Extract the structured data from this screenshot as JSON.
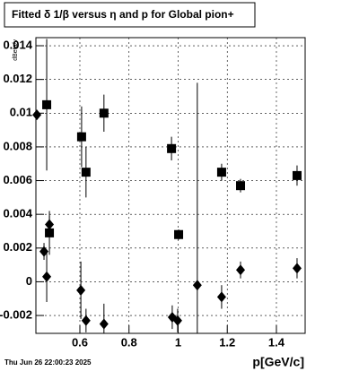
{
  "chart_data": {
    "type": "errorbar",
    "title": "Fitted δ 1/β versus η and p for Global pion+",
    "x_label": "p[GeV/c]",
    "y_label": "dBeta/v",
    "timestamp": "Thu Jun 26 22:00:23 2025",
    "xlim": [
      0.421,
      1.517
    ],
    "ylim": [
      -0.00306,
      0.01448
    ],
    "xticks": [
      0.6,
      0.8,
      1,
      1.2,
      1.4
    ],
    "yticks": [
      -0.002,
      0,
      0.002,
      0.004,
      0.006,
      0.008,
      0.01,
      0.012,
      0.014
    ],
    "grid": true,
    "series": [
      {
        "marker": "square",
        "color": "#000000",
        "x": [
          0.465,
          0.476,
          0.607,
          0.625,
          0.698,
          0.973,
          1.002,
          1.177,
          1.254,
          1.484
        ],
        "values": [
          0.0105,
          0.0029,
          0.0086,
          0.0065,
          0.01,
          0.0079,
          0.0028,
          0.0065,
          0.0057,
          0.0063
        ],
        "errors": [
          0.0039,
          0.0013,
          0.0018,
          0.0015,
          0.0011,
          0.0007,
          0.0003,
          0.0005,
          0.0004,
          0.0006
        ]
      },
      {
        "marker": "diamond",
        "color": "#000000",
        "x": [
          0.425,
          0.454,
          0.476,
          0.465,
          0.604,
          0.625,
          0.698,
          0.976,
          0.998,
          1.078,
          1.177,
          1.254,
          1.484
        ],
        "values": [
          0.0099,
          0.0018,
          0.0034,
          0.0003,
          -0.0005,
          -0.0023,
          -0.0025,
          -0.0021,
          -0.0023,
          -0.0002,
          -0.0009,
          0.0007,
          0.0008
        ],
        "errors": [
          0.0001,
          0.0005,
          0.0005,
          0.0015,
          0.0017,
          0.0007,
          0.0012,
          0.0007,
          0.0007,
          0.012,
          0.0007,
          0.0005,
          0.0006
        ]
      }
    ]
  }
}
